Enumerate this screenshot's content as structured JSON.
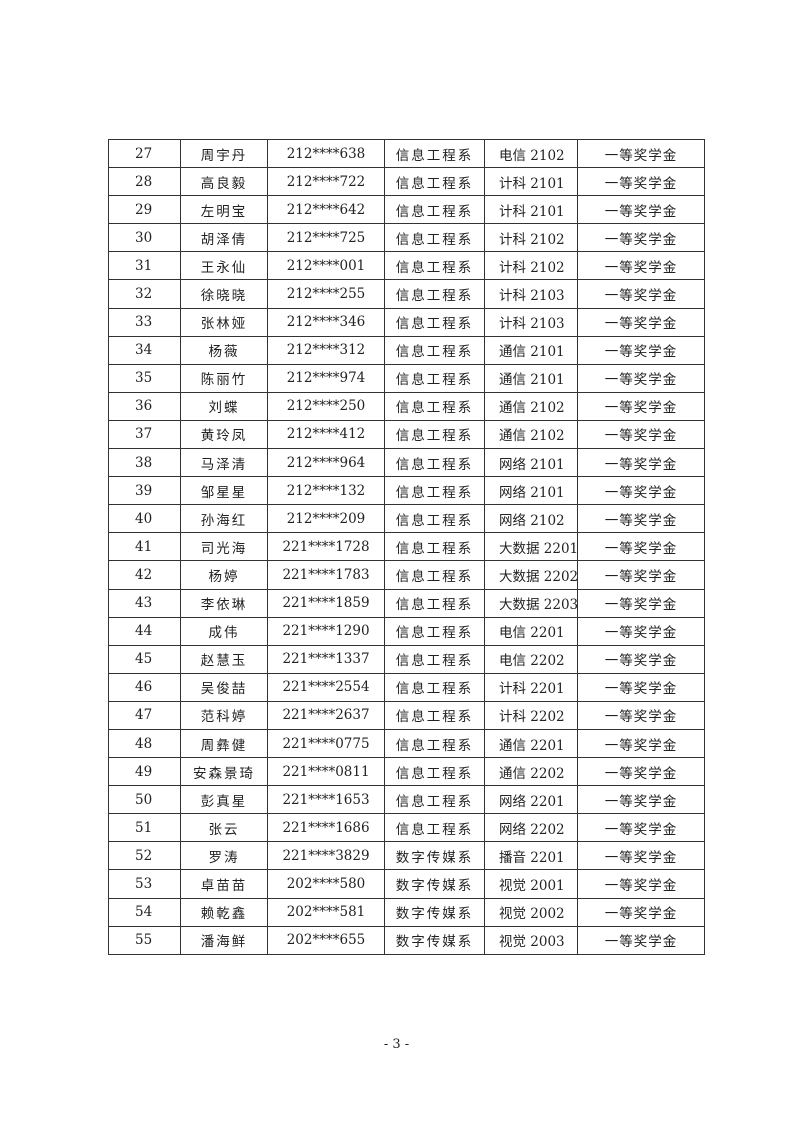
{
  "table": {
    "rows": [
      [
        "27",
        "周宇丹",
        "212****638",
        "信息工程系",
        "电信 2102",
        "一等奖学金"
      ],
      [
        "28",
        "高良毅",
        "212****722",
        "信息工程系",
        "计科 2101",
        "一等奖学金"
      ],
      [
        "29",
        "左明宝",
        "212****642",
        "信息工程系",
        "计科 2101",
        "一等奖学金"
      ],
      [
        "30",
        "胡泽倩",
        "212****725",
        "信息工程系",
        "计科 2102",
        "一等奖学金"
      ],
      [
        "31",
        "王永仙",
        "212****001",
        "信息工程系",
        "计科 2102",
        "一等奖学金"
      ],
      [
        "32",
        "徐晓晓",
        "212****255",
        "信息工程系",
        "计科 2103",
        "一等奖学金"
      ],
      [
        "33",
        "张林娅",
        "212****346",
        "信息工程系",
        "计科 2103",
        "一等奖学金"
      ],
      [
        "34",
        "杨薇",
        "212****312",
        "信息工程系",
        "通信 2101",
        "一等奖学金"
      ],
      [
        "35",
        "陈丽竹",
        "212****974",
        "信息工程系",
        "通信 2101",
        "一等奖学金"
      ],
      [
        "36",
        "刘蝶",
        "212****250",
        "信息工程系",
        "通信 2102",
        "一等奖学金"
      ],
      [
        "37",
        "黄玲凤",
        "212****412",
        "信息工程系",
        "通信 2102",
        "一等奖学金"
      ],
      [
        "38",
        "马泽清",
        "212****964",
        "信息工程系",
        "网络 2101",
        "一等奖学金"
      ],
      [
        "39",
        "邹星星",
        "212****132",
        "信息工程系",
        "网络 2101",
        "一等奖学金"
      ],
      [
        "40",
        "孙海红",
        "212****209",
        "信息工程系",
        "网络 2102",
        "一等奖学金"
      ],
      [
        "41",
        "司光海",
        "221****1728",
        "信息工程系",
        "大数据 2201",
        "一等奖学金"
      ],
      [
        "42",
        "杨婷",
        "221****1783",
        "信息工程系",
        "大数据 2202",
        "一等奖学金"
      ],
      [
        "43",
        "李依琳",
        "221****1859",
        "信息工程系",
        "大数据 2203",
        "一等奖学金"
      ],
      [
        "44",
        "成伟",
        "221****1290",
        "信息工程系",
        "电信 2201",
        "一等奖学金"
      ],
      [
        "45",
        "赵慧玉",
        "221****1337",
        "信息工程系",
        "电信 2202",
        "一等奖学金"
      ],
      [
        "46",
        "吴俊喆",
        "221****2554",
        "信息工程系",
        "计科 2201",
        "一等奖学金"
      ],
      [
        "47",
        "范科婷",
        "221****2637",
        "信息工程系",
        "计科 2202",
        "一等奖学金"
      ],
      [
        "48",
        "周彝健",
        "221****0775",
        "信息工程系",
        "通信 2201",
        "一等奖学金"
      ],
      [
        "49",
        "安森景琦",
        "221****0811",
        "信息工程系",
        "通信 2202",
        "一等奖学金"
      ],
      [
        "50",
        "彭真星",
        "221****1653",
        "信息工程系",
        "网络 2201",
        "一等奖学金"
      ],
      [
        "51",
        "张云",
        "221****1686",
        "信息工程系",
        "网络 2202",
        "一等奖学金"
      ],
      [
        "52",
        "罗涛",
        "221****3829",
        "数字传媒系",
        "播音 2201",
        "一等奖学金"
      ],
      [
        "53",
        "卓苗苗",
        "202****580",
        "数字传媒系",
        "视觉 2001",
        "一等奖学金"
      ],
      [
        "54",
        "赖乾鑫",
        "202****581",
        "数字传媒系",
        "视觉 2002",
        "一等奖学金"
      ],
      [
        "55",
        "潘海鲜",
        "202****655",
        "数字传媒系",
        "视觉 2003",
        "一等奖学金"
      ]
    ]
  },
  "footer": {
    "page_number": "- 3 -"
  }
}
